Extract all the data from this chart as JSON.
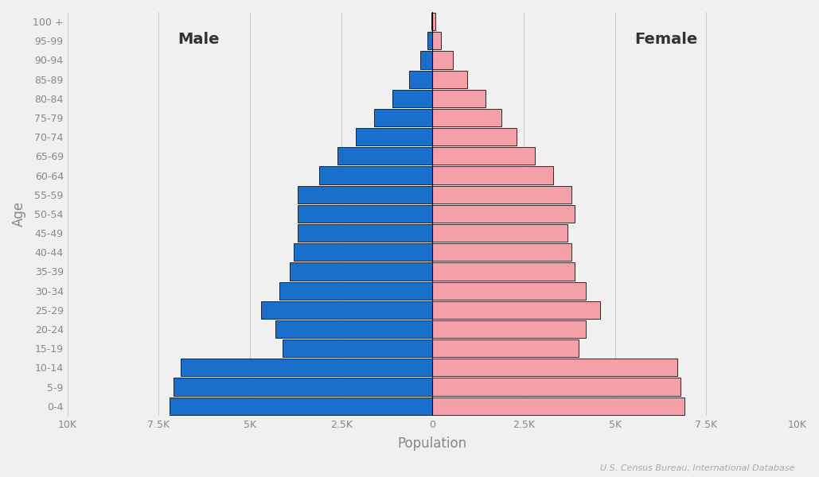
{
  "age_groups": [
    "0-4",
    "5-9",
    "10-14",
    "15-19",
    "20-24",
    "25-29",
    "30-34",
    "35-39",
    "40-44",
    "45-49",
    "50-54",
    "55-59",
    "60-64",
    "65-69",
    "70-74",
    "75-79",
    "80-84",
    "85-89",
    "90-94",
    "95-99",
    "100 +"
  ],
  "male": [
    7200,
    7100,
    6900,
    4100,
    4300,
    4700,
    4200,
    3900,
    3800,
    3700,
    3700,
    3700,
    3100,
    2600,
    2100,
    1600,
    1100,
    650,
    330,
    130,
    40
  ],
  "female": [
    6900,
    6800,
    6700,
    4000,
    4200,
    4600,
    4200,
    3900,
    3800,
    3700,
    3900,
    3800,
    3300,
    2800,
    2300,
    1900,
    1450,
    950,
    550,
    230,
    90
  ],
  "male_color": "#1a6fcd",
  "female_color": "#f4a0a8",
  "edgecolor": "#111111",
  "background_color": "#f0f0f0",
  "xlabel": "Population",
  "ylabel": "Age",
  "male_label": "Male",
  "female_label": "Female",
  "footnote": "U.S. Census Bureau, International Database",
  "xlim": 10000,
  "xticks": [
    -10000,
    -7500,
    -5000,
    -2500,
    0,
    2500,
    5000,
    7500,
    10000
  ],
  "xticklabels": [
    "10K",
    "7.5K",
    "5K",
    "2.5K",
    "0",
    "2.5K",
    "5K",
    "7.5K",
    "10K"
  ],
  "grid_color": "#cccccc",
  "tick_color": "#888888",
  "label_color": "#888888",
  "male_female_label_color": "#333333",
  "footnote_color": "#aaaaaa"
}
